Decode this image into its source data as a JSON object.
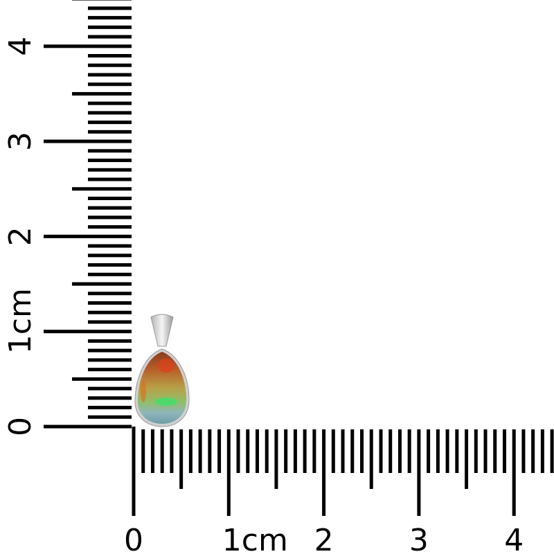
{
  "vertical_ruler": {
    "labels": [
      "0",
      "1cm",
      "2",
      "3",
      "4"
    ]
  },
  "horizontal_ruler": {
    "labels": [
      "0",
      "1cm",
      "2",
      "3",
      "4"
    ]
  },
  "product": {
    "type": "teardrop opal pendant",
    "colors": {
      "bezel": "#c8c8c8",
      "stone_top": "#b5442a",
      "stone_mid": "#b7a047",
      "stone_bottom": "#7fb0b8",
      "flash_green": "#3fe06a"
    }
  }
}
